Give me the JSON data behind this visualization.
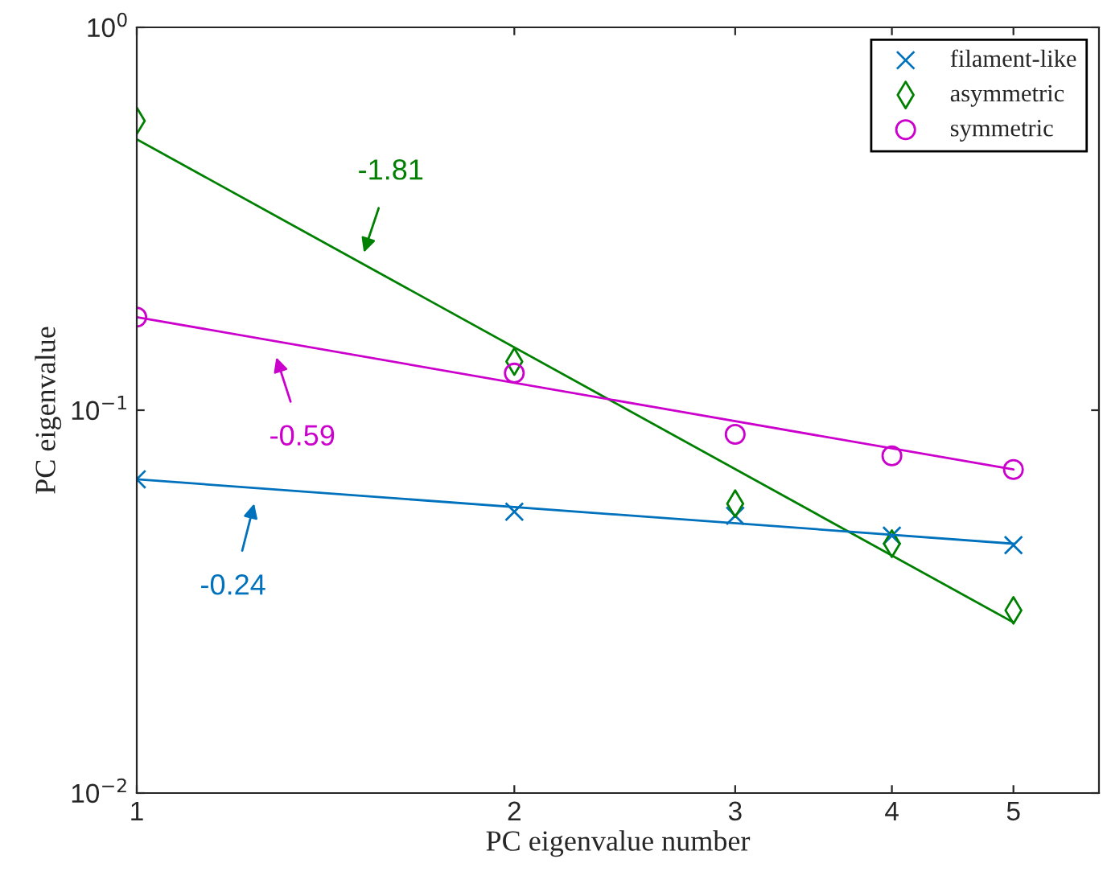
{
  "chart_data": {
    "type": "scatter",
    "xlabel": "PC eigenvalue number",
    "ylabel": "PC eigenvalue",
    "log": "xy",
    "xlim": [
      1,
      5.85
    ],
    "ylim": [
      0.01,
      1
    ],
    "xticks": [
      1,
      2,
      3,
      4,
      5
    ],
    "yticks": [
      {
        "value": 0.01,
        "label": "10$^{−2}$"
      },
      {
        "value": 0.1,
        "label": "10$^{−1}$"
      },
      {
        "value": 1,
        "label": "10$^{0}$"
      }
    ],
    "grid": false,
    "legend": "top right",
    "series": [
      {
        "name": "filament-like",
        "color": "#0072bd",
        "marker": "cross",
        "x": [
          1,
          2,
          3,
          4,
          5
        ],
        "values": [
          0.066,
          0.0543,
          0.053,
          0.047,
          0.0444
        ]
      },
      {
        "name": "asymmetric",
        "color": "#008000",
        "marker": "diamond",
        "x": [
          1,
          2,
          3,
          4,
          5
        ],
        "values": [
          0.57,
          0.134,
          0.057,
          0.0448,
          0.03
        ]
      },
      {
        "name": "symmetric",
        "color": "#cc00cc",
        "marker": "circle",
        "x": [
          1,
          2,
          3,
          4,
          5
        ],
        "values": [
          0.175,
          0.125,
          0.0865,
          0.076,
          0.07
        ]
      },
      {
        "type": "line",
        "color": "#008000",
        "x": [
          1,
          5
        ],
        "values": [
          0.51,
          0.0279
        ]
      },
      {
        "type": "line",
        "color": "#cc00cc",
        "x": [
          1,
          5
        ],
        "values": [
          0.175,
          0.07
        ]
      },
      {
        "type": "line",
        "color": "#0072bd",
        "x": [
          1,
          5
        ],
        "values": [
          0.066,
          0.0448
        ]
      }
    ],
    "annotations": [
      "-1.81",
      "-0.59",
      "-0.24"
    ]
  }
}
